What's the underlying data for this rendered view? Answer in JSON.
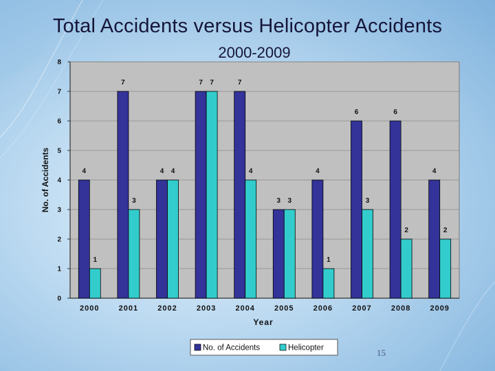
{
  "slide": {
    "title": "Total Accidents versus Helicopter Accidents",
    "subtitle": "2000-2009",
    "page_number": "15"
  },
  "colors": {
    "total": "#33339a",
    "helicopter": "#33cccc",
    "plot_bg": "#c0c0c0"
  },
  "chart_data": {
    "type": "bar",
    "title": "",
    "xlabel": "Year",
    "ylabel": "No. of Accidents",
    "categories": [
      "2000",
      "2001",
      "2002",
      "2003",
      "2004",
      "2005",
      "2006",
      "2007",
      "2008",
      "2009"
    ],
    "ylim": [
      0,
      8
    ],
    "yticks": [
      "0",
      "1",
      "2",
      "3",
      "4",
      "5",
      "6",
      "7",
      "8"
    ],
    "grid": true,
    "legend_position": "bottom",
    "series": [
      {
        "name": "No. of Accidents",
        "values": [
          4,
          7,
          4,
          7,
          7,
          3,
          4,
          6,
          6,
          4
        ]
      },
      {
        "name": "Helicopter",
        "values": [
          1,
          3,
          4,
          7,
          4,
          3,
          1,
          3,
          2,
          2
        ]
      }
    ]
  }
}
